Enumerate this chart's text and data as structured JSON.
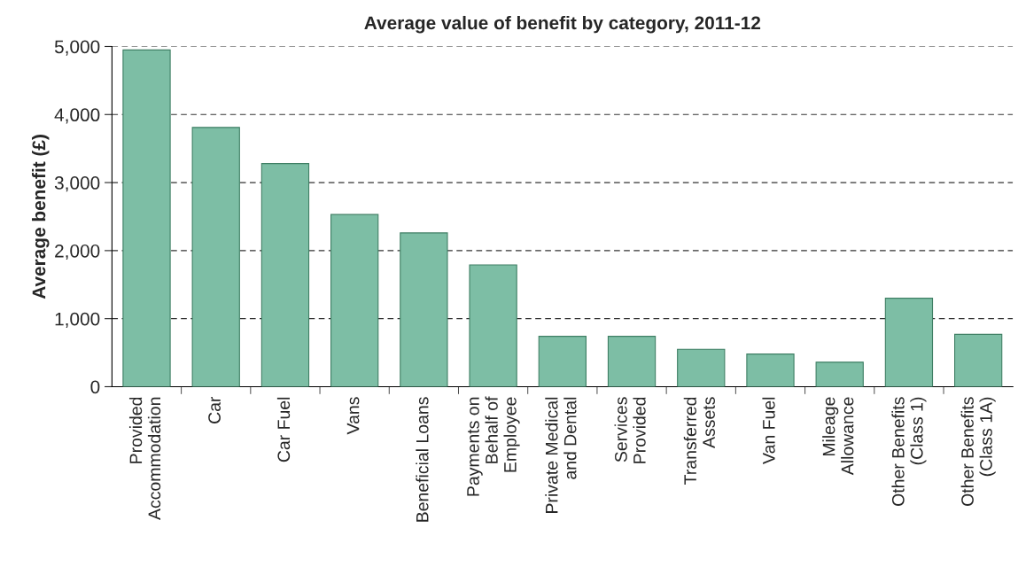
{
  "chart_data": {
    "type": "bar",
    "title": "Average value of benefit by category, 2011-12",
    "ylabel": "Average benefit (£)",
    "categories": [
      "Provided\nAccommodation",
      "Car",
      "Car Fuel",
      "Vans",
      "Beneficial Loans",
      "Payments on\nBehalf of\nEmployee",
      "Private Medical\nand Dental",
      "Services\nProvided",
      "Transferred\nAssets",
      "Van Fuel",
      "Mileage\nAllowance",
      "Other Benefits\n(Class 1)",
      "Other Benefits\n(Class 1A)"
    ],
    "values": [
      4950,
      3810,
      3280,
      2530,
      2260,
      1790,
      740,
      740,
      550,
      480,
      360,
      1300,
      770
    ],
    "color": "#7dbea5",
    "ylim": [
      0,
      5000
    ],
    "yticks": [
      {
        "value": 0,
        "label": "0"
      },
      {
        "value": 1000,
        "label": "1,000"
      },
      {
        "value": 2000,
        "label": "2,000"
      },
      {
        "value": 3000,
        "label": "3,000"
      },
      {
        "value": 4000,
        "label": "4,000"
      },
      {
        "value": 5000,
        "label": "5,000"
      }
    ],
    "grid": "y",
    "line_style": "dashed"
  }
}
